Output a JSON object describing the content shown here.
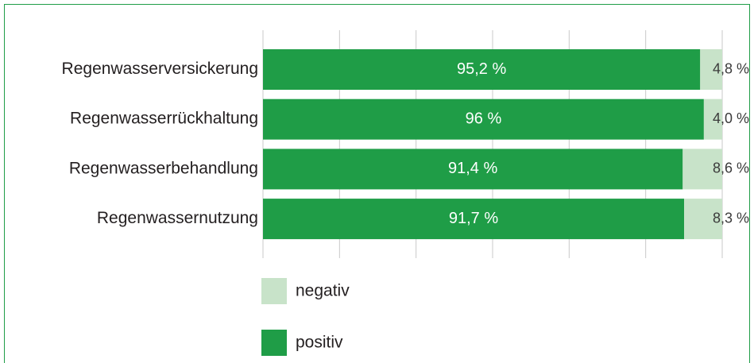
{
  "chart_data": {
    "type": "stacked-barh",
    "categories": [
      "Regenwasserversickerung",
      "Regenwasserrückhaltung",
      "Regenwasserbehandlung",
      "Regenwassernutzung"
    ],
    "series": [
      {
        "name": "positiv",
        "color": "#1f9d47",
        "values": [
          95.2,
          96,
          91.4,
          91.7
        ],
        "value_labels": [
          "95,2 %",
          "96 %",
          "91,4 %",
          "91,7 %"
        ]
      },
      {
        "name": "negativ",
        "color": "#c8e3c9",
        "values": [
          4.8,
          4.0,
          8.6,
          8.3
        ],
        "value_labels": [
          "4,8 %",
          "4,0 %",
          "8,6 %",
          "8,3 %"
        ]
      }
    ],
    "xlim": [
      0,
      100
    ],
    "xticks": [
      0,
      16.667,
      33.333,
      50,
      66.667,
      83.333,
      100
    ],
    "grid": true
  }
}
